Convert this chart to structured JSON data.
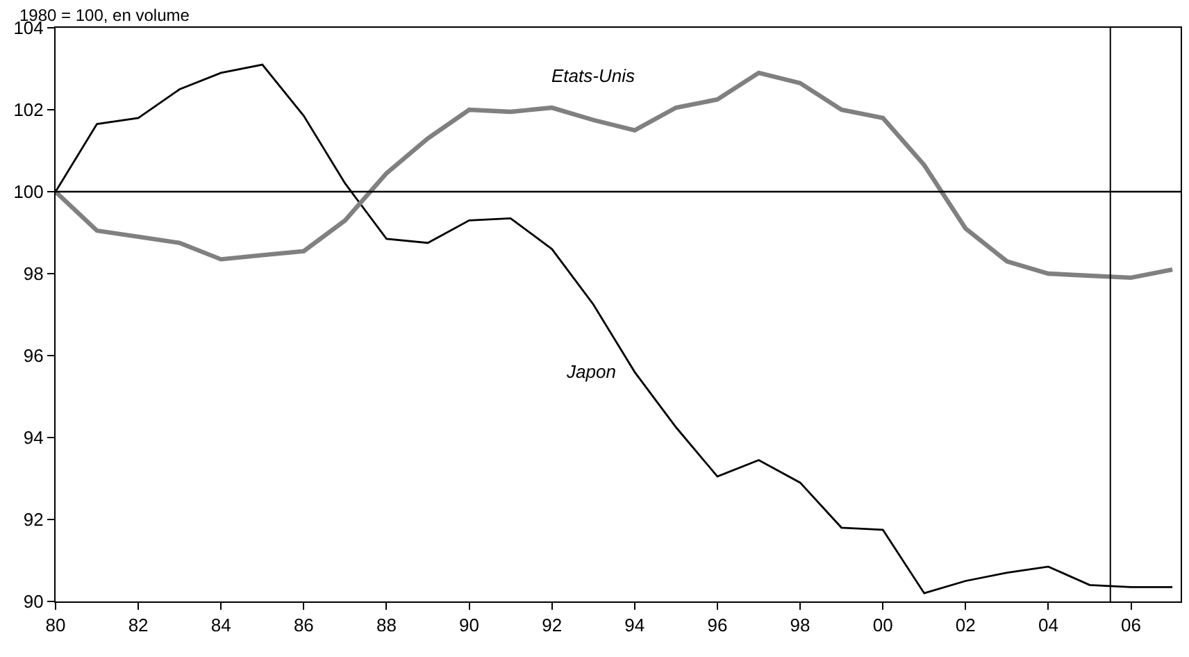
{
  "chart_data": {
    "type": "line",
    "ylabel": "1980 = 100, en volume",
    "x": [
      1980,
      1981,
      1982,
      1983,
      1984,
      1985,
      1986,
      1987,
      1988,
      1989,
      1990,
      1991,
      1992,
      1993,
      1994,
      1995,
      1996,
      1997,
      1998,
      1999,
      2000,
      2001,
      2002,
      2003,
      2004,
      2005,
      2006,
      2007
    ],
    "series": [
      {
        "name": "Japon",
        "color": "#000000",
        "values": [
          100,
          101.65,
          101.8,
          102.5,
          102.9,
          103.1,
          101.85,
          100.2,
          98.85,
          98.75,
          99.3,
          99.35,
          98.6,
          97.25,
          95.6,
          94.25,
          93.05,
          93.45,
          92.9,
          91.8,
          91.75,
          90.2,
          90.5,
          90.7,
          90.85,
          90.4,
          90.35,
          90.35
        ]
      },
      {
        "name": "Etats-Unis",
        "color": "#808080",
        "values": [
          100,
          99.05,
          98.9,
          98.75,
          98.35,
          98.45,
          98.55,
          99.3,
          100.45,
          101.3,
          102.0,
          101.95,
          102.05,
          101.75,
          101.5,
          102.05,
          102.25,
          102.9,
          102.65,
          102.0,
          101.8,
          100.65,
          99.1,
          98.3,
          98.0,
          97.95,
          97.9,
          98.1
        ]
      }
    ],
    "xlim": [
      1980,
      2007.2
    ],
    "ylim": [
      90,
      104
    ],
    "xticks": [
      {
        "value": 1980,
        "label": "80"
      },
      {
        "value": 1982,
        "label": "82"
      },
      {
        "value": 1984,
        "label": "84"
      },
      {
        "value": 1986,
        "label": "86"
      },
      {
        "value": 1988,
        "label": "88"
      },
      {
        "value": 1990,
        "label": "90"
      },
      {
        "value": 1992,
        "label": "92"
      },
      {
        "value": 1994,
        "label": "94"
      },
      {
        "value": 1996,
        "label": "96"
      },
      {
        "value": 1998,
        "label": "98"
      },
      {
        "value": 2000,
        "label": "00"
      },
      {
        "value": 2002,
        "label": "02"
      },
      {
        "value": 2004,
        "label": "04"
      },
      {
        "value": 2006,
        "label": "06"
      }
    ],
    "yticks": [
      90,
      92,
      94,
      96,
      98,
      100,
      102,
      104
    ],
    "ref_lines": [
      {
        "axis": "y",
        "value": 100,
        "color": "#000000"
      },
      {
        "axis": "x",
        "value": 2005.5,
        "color": "#000000"
      }
    ],
    "legend": false,
    "marker": "none",
    "line_style": "solid"
  }
}
